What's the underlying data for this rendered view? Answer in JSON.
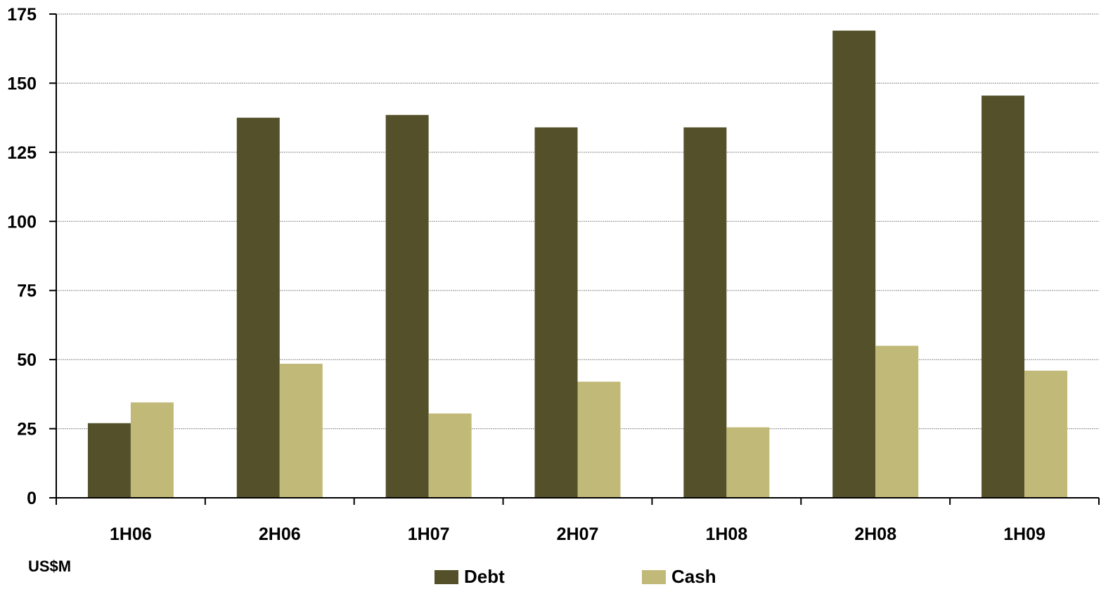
{
  "chart_data": {
    "type": "bar",
    "categories": [
      "1H06",
      "2H06",
      "1H07",
      "2H07",
      "1H08",
      "2H08",
      "1H09"
    ],
    "series": [
      {
        "name": "Debt",
        "color": "#545029",
        "values": [
          27,
          137.5,
          138.5,
          134,
          134,
          169,
          145.5
        ]
      },
      {
        "name": "Cash",
        "color": "#c1b978",
        "values": [
          34.5,
          48.5,
          30.5,
          42,
          25.5,
          55,
          46
        ]
      }
    ],
    "yticks": [
      0,
      25,
      50,
      75,
      100,
      125,
      150,
      175
    ],
    "ylim": [
      0,
      175
    ],
    "ylabel": "US$M",
    "title": "",
    "xlabel": "",
    "grid": true,
    "legend_position": "bottom"
  }
}
